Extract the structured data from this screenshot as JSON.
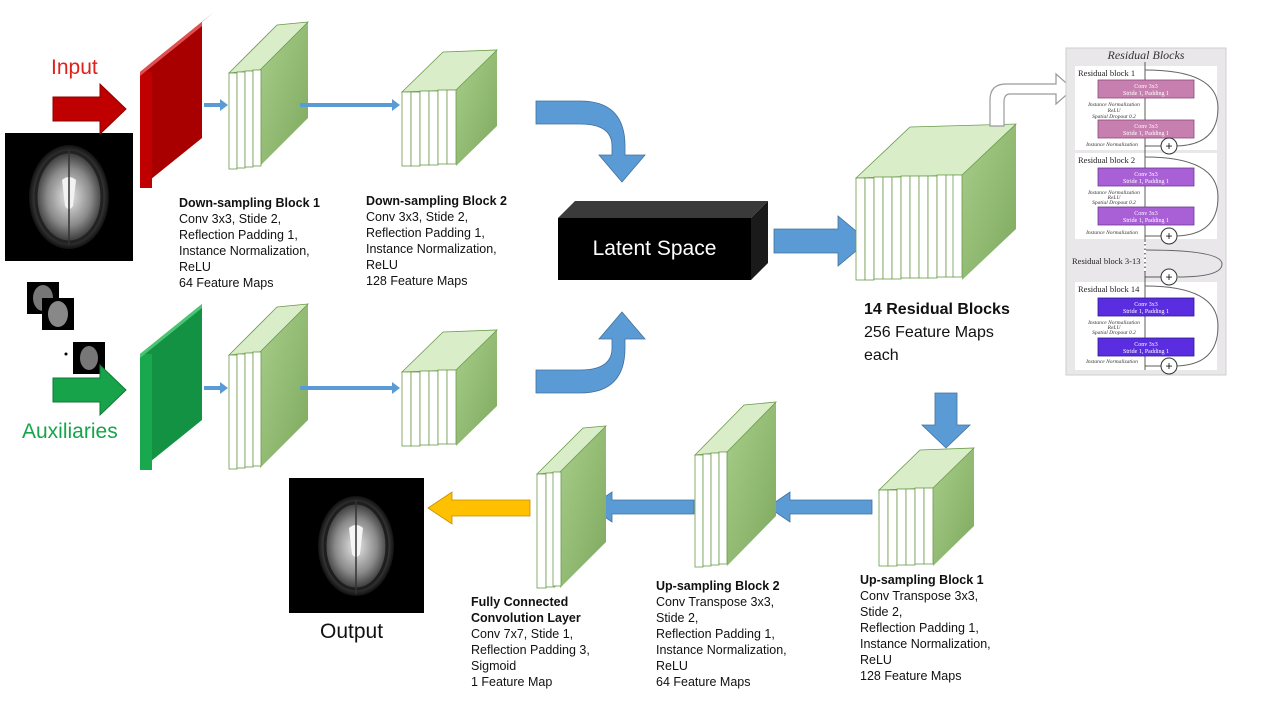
{
  "labels": {
    "input": "Input",
    "auxiliaries": "Auxiliaries",
    "output": "Output",
    "latent_space": "Latent Space"
  },
  "blocks": {
    "down1": {
      "title": "Down-sampling Block 1",
      "lines": [
        "Conv  3x3, Stide 2,",
        "Reflection Padding 1,",
        "Instance Normalization,",
        "ReLU",
        "64 Feature Maps"
      ]
    },
    "down2": {
      "title": "Down-sampling Block 2",
      "lines": [
        "Conv  3x3, Stide 2,",
        "Reflection Padding 1,",
        "Instance Normalization,",
        "ReLU",
        "128 Feature Maps"
      ]
    },
    "residual": {
      "title": "14 Residual Blocks",
      "lines": [
        "256 Feature Maps",
        "each"
      ]
    },
    "up1": {
      "title": "Up-sampling Block 1",
      "lines": [
        "Conv Transpose 3x3,",
        "Stide 2,",
        "Reflection Padding 1,",
        "Instance Normalization,",
        "ReLU",
        "128 Feature Maps"
      ]
    },
    "up2": {
      "title": "Up-sampling Block 2",
      "lines": [
        "Conv Transpose 3x3,",
        "Stide 2,",
        "Reflection Padding 1,",
        "Instance Normalization,",
        "ReLU",
        "64 Feature Maps"
      ]
    },
    "fc": {
      "title": "Fully Connected",
      "title2": "Convolution Layer",
      "lines": [
        "Conv 7x7, Stide 1,",
        "Reflection Padding 3,",
        "Sigmoid",
        "1 Feature Map"
      ]
    }
  },
  "residual_inset": {
    "title": "Residual Blocks",
    "block1": {
      "name": "Residual block 1",
      "conv": "Conv 3x3",
      "stride": "Stride 1, Padding 1",
      "mid": [
        "Instance Normalization",
        "ReLU",
        "Spatial Dropout 0.2"
      ],
      "end": "Instance Normalization"
    },
    "block2": {
      "name": "Residual block 2",
      "conv": "Conv 3x3",
      "stride": "Stride 1, Padding 1",
      "mid": [
        "Instance Normalization",
        "ReLU",
        "Spatial Dropout 0.2"
      ],
      "end": "Instance Normalization"
    },
    "block_mid": {
      "name": "Residual block 3-13"
    },
    "block14": {
      "name": "Residual block 14",
      "conv": "Conv 3x3",
      "stride": "Stride 1, Padding 1",
      "mid": [
        "Instance Normalization",
        "ReLU",
        "Spatial Dropout 0.2"
      ],
      "end": "Instance Normalization"
    },
    "plus": "+"
  },
  "colors": {
    "input_red": "#c00000",
    "aux_green": "#17a34a",
    "map_green": "#8fbf6a",
    "arrow_blue": "#5b9bd5",
    "arrow_orange": "#ffc000",
    "block1_conv": "#c77fb0",
    "block2_conv": "#a95fd6",
    "block14_conv": "#5b2de0"
  }
}
